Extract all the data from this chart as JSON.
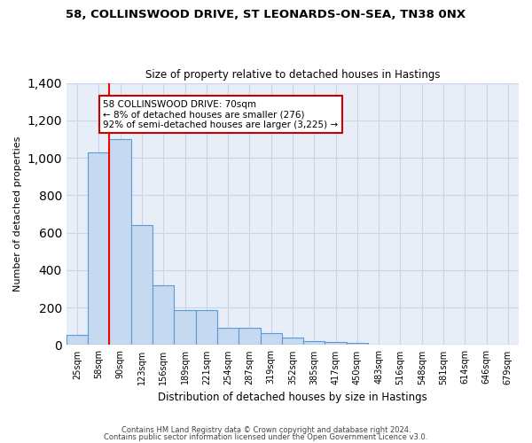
{
  "title_line1": "58, COLLINSWOOD DRIVE, ST LEONARDS-ON-SEA, TN38 0NX",
  "title_line2": "Size of property relative to detached houses in Hastings",
  "xlabel": "Distribution of detached houses by size in Hastings",
  "ylabel": "Number of detached properties",
  "bar_labels": [
    "25sqm",
    "58sqm",
    "90sqm",
    "123sqm",
    "156sqm",
    "189sqm",
    "221sqm",
    "254sqm",
    "287sqm",
    "319sqm",
    "352sqm",
    "385sqm",
    "417sqm",
    "450sqm",
    "483sqm",
    "516sqm",
    "548sqm",
    "581sqm",
    "614sqm",
    "646sqm",
    "679sqm"
  ],
  "bar_values": [
    55,
    1030,
    1100,
    640,
    320,
    185,
    185,
    90,
    90,
    65,
    40,
    20,
    15,
    10,
    0,
    0,
    0,
    0,
    0,
    0,
    0
  ],
  "bar_color": "#c5d9f1",
  "bar_edge_color": "#5b9bd5",
  "red_line_x": 1.5,
  "annotation_text": "58 COLLINSWOOD DRIVE: 70sqm\n← 8% of detached houses are smaller (276)\n92% of semi-detached houses are larger (3,225) →",
  "annotation_box_color": "#ffffff",
  "annotation_border_color": "#cc0000",
  "ylim": [
    0,
    1400
  ],
  "yticks": [
    0,
    200,
    400,
    600,
    800,
    1000,
    1200,
    1400
  ],
  "footer_line1": "Contains HM Land Registry data © Crown copyright and database right 2024.",
  "footer_line2": "Contains public sector information licensed under the Open Government Licence v3.0.",
  "background_color": "#ffffff",
  "plot_bg_color": "#e8eef8",
  "grid_color": "#c8d4e8"
}
